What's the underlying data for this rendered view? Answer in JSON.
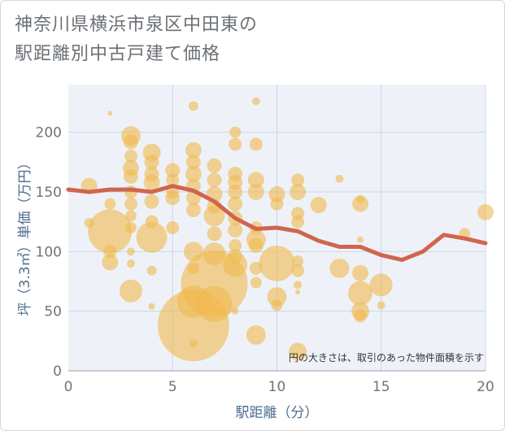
{
  "title_line1": "神奈川県横浜市泉区中田東の",
  "title_line2": "駅距離別中古戸建て価格",
  "chart_data": {
    "type": "scatter",
    "xlabel": "駅距離（分）",
    "ylabel": "坪（3.3㎡）単価（万円）",
    "xlim": [
      0,
      20
    ],
    "ylim": [
      0,
      240
    ],
    "xticks": [
      0,
      5,
      10,
      15,
      20
    ],
    "yticks": [
      0,
      50,
      100,
      150,
      200
    ],
    "grid": true,
    "note": "円の大きさは、取引のあった物件面積を示す",
    "colors": {
      "bubble": "#f0b94e",
      "line": "#d0654e",
      "plot_bg": "#eef2f8",
      "grid": "#c9d6e6"
    },
    "points": [
      {
        "x": 1,
        "y": 155,
        "s": 10
      },
      {
        "x": 1,
        "y": 124,
        "s": 6
      },
      {
        "x": 2,
        "y": 216,
        "s": 3
      },
      {
        "x": 2,
        "y": 140,
        "s": 7
      },
      {
        "x": 2,
        "y": 117,
        "s": 27
      },
      {
        "x": 2,
        "y": 100,
        "s": 8
      },
      {
        "x": 2,
        "y": 91,
        "s": 10
      },
      {
        "x": 3,
        "y": 197,
        "s": 12
      },
      {
        "x": 3,
        "y": 192,
        "s": 9
      },
      {
        "x": 3,
        "y": 180,
        "s": 8
      },
      {
        "x": 3,
        "y": 170,
        "s": 10
      },
      {
        "x": 3,
        "y": 163,
        "s": 9
      },
      {
        "x": 3,
        "y": 150,
        "s": 8
      },
      {
        "x": 3,
        "y": 140,
        "s": 8
      },
      {
        "x": 3,
        "y": 130,
        "s": 7
      },
      {
        "x": 3,
        "y": 120,
        "s": 7
      },
      {
        "x": 3,
        "y": 100,
        "s": 5
      },
      {
        "x": 3,
        "y": 90,
        "s": 5
      },
      {
        "x": 3,
        "y": 67,
        "s": 14
      },
      {
        "x": 4,
        "y": 183,
        "s": 11
      },
      {
        "x": 4,
        "y": 175,
        "s": 9
      },
      {
        "x": 4,
        "y": 165,
        "s": 9
      },
      {
        "x": 4,
        "y": 158,
        "s": 10
      },
      {
        "x": 4,
        "y": 142,
        "s": 9
      },
      {
        "x": 4,
        "y": 125,
        "s": 8
      },
      {
        "x": 4,
        "y": 112,
        "s": 19
      },
      {
        "x": 4,
        "y": 84,
        "s": 6
      },
      {
        "x": 4,
        "y": 54,
        "s": 4
      },
      {
        "x": 5,
        "y": 168,
        "s": 9
      },
      {
        "x": 5,
        "y": 160,
        "s": 8
      },
      {
        "x": 5,
        "y": 150,
        "s": 8
      },
      {
        "x": 5,
        "y": 145,
        "s": 9
      },
      {
        "x": 5,
        "y": 120,
        "s": 8
      },
      {
        "x": 6,
        "y": 222,
        "s": 6
      },
      {
        "x": 6,
        "y": 185,
        "s": 10
      },
      {
        "x": 6,
        "y": 175,
        "s": 9
      },
      {
        "x": 6,
        "y": 165,
        "s": 10
      },
      {
        "x": 6,
        "y": 155,
        "s": 9
      },
      {
        "x": 6,
        "y": 145,
        "s": 9
      },
      {
        "x": 6,
        "y": 135,
        "s": 9
      },
      {
        "x": 6,
        "y": 100,
        "s": 12
      },
      {
        "x": 6,
        "y": 86,
        "s": 7
      },
      {
        "x": 6,
        "y": 58,
        "s": 20
      },
      {
        "x": 6,
        "y": 38,
        "s": 44
      },
      {
        "x": 6,
        "y": 23,
        "s": 5
      },
      {
        "x": 7,
        "y": 172,
        "s": 9
      },
      {
        "x": 7,
        "y": 160,
        "s": 9
      },
      {
        "x": 7,
        "y": 148,
        "s": 10
      },
      {
        "x": 7,
        "y": 138,
        "s": 9
      },
      {
        "x": 7,
        "y": 130,
        "s": 13
      },
      {
        "x": 7,
        "y": 115,
        "s": 9
      },
      {
        "x": 7,
        "y": 98,
        "s": 14
      },
      {
        "x": 7,
        "y": 73,
        "s": 41
      },
      {
        "x": 7,
        "y": 56,
        "s": 22
      },
      {
        "x": 8,
        "y": 200,
        "s": 7
      },
      {
        "x": 8,
        "y": 190,
        "s": 8
      },
      {
        "x": 8,
        "y": 165,
        "s": 9
      },
      {
        "x": 8,
        "y": 158,
        "s": 9
      },
      {
        "x": 8,
        "y": 150,
        "s": 9
      },
      {
        "x": 8,
        "y": 140,
        "s": 9
      },
      {
        "x": 8,
        "y": 128,
        "s": 9
      },
      {
        "x": 8,
        "y": 118,
        "s": 9
      },
      {
        "x": 8,
        "y": 105,
        "s": 8
      },
      {
        "x": 8,
        "y": 96,
        "s": 9
      },
      {
        "x": 8,
        "y": 89,
        "s": 15
      },
      {
        "x": 8,
        "y": 50,
        "s": 4
      },
      {
        "x": 9,
        "y": 226,
        "s": 5
      },
      {
        "x": 9,
        "y": 190,
        "s": 8
      },
      {
        "x": 9,
        "y": 160,
        "s": 10
      },
      {
        "x": 9,
        "y": 150,
        "s": 10
      },
      {
        "x": 9,
        "y": 120,
        "s": 8
      },
      {
        "x": 9,
        "y": 110,
        "s": 12
      },
      {
        "x": 9,
        "y": 105,
        "s": 9
      },
      {
        "x": 9,
        "y": 86,
        "s": 8
      },
      {
        "x": 9,
        "y": 74,
        "s": 7
      },
      {
        "x": 9,
        "y": 30,
        "s": 12
      },
      {
        "x": 10,
        "y": 148,
        "s": 10
      },
      {
        "x": 10,
        "y": 140,
        "s": 8
      },
      {
        "x": 10,
        "y": 90,
        "s": 22
      },
      {
        "x": 10,
        "y": 62,
        "s": 12
      },
      {
        "x": 10,
        "y": 55,
        "s": 7
      },
      {
        "x": 11,
        "y": 160,
        "s": 8
      },
      {
        "x": 11,
        "y": 150,
        "s": 10
      },
      {
        "x": 11,
        "y": 132,
        "s": 8
      },
      {
        "x": 11,
        "y": 125,
        "s": 8
      },
      {
        "x": 11,
        "y": 92,
        "s": 7
      },
      {
        "x": 11,
        "y": 84,
        "s": 8
      },
      {
        "x": 11,
        "y": 72,
        "s": 5
      },
      {
        "x": 11,
        "y": 66,
        "s": 3
      },
      {
        "x": 11,
        "y": 16,
        "s": 11
      },
      {
        "x": 12,
        "y": 139,
        "s": 10
      },
      {
        "x": 13,
        "y": 161,
        "s": 5
      },
      {
        "x": 13,
        "y": 86,
        "s": 12
      },
      {
        "x": 14,
        "y": 144,
        "s": 5
      },
      {
        "x": 14,
        "y": 140,
        "s": 10
      },
      {
        "x": 14,
        "y": 110,
        "s": 4
      },
      {
        "x": 14,
        "y": 82,
        "s": 10
      },
      {
        "x": 14,
        "y": 65,
        "s": 15
      },
      {
        "x": 14,
        "y": 50,
        "s": 11
      },
      {
        "x": 14,
        "y": 46,
        "s": 8
      },
      {
        "x": 15,
        "y": 72,
        "s": 14
      },
      {
        "x": 15,
        "y": 55,
        "s": 5
      },
      {
        "x": 19,
        "y": 115,
        "s": 7
      },
      {
        "x": 20,
        "y": 133,
        "s": 10
      }
    ],
    "trend": {
      "x": [
        0,
        1,
        2,
        3,
        4,
        5,
        6,
        7,
        8,
        9,
        10,
        11,
        12,
        13,
        14,
        15,
        16,
        17,
        18,
        19,
        20
      ],
      "y": [
        152,
        150,
        152,
        152,
        150,
        155,
        151,
        142,
        128,
        119,
        120,
        117,
        109,
        104,
        104,
        97,
        93,
        100,
        114,
        111,
        107
      ]
    }
  }
}
